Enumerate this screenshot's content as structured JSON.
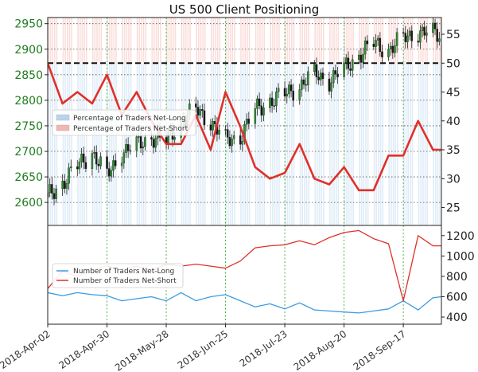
{
  "chart_data": [
    {
      "type": "line",
      "panel": "positioning",
      "title": "US 500 Client Positioning",
      "price_ticks": [
        2600,
        2650,
        2700,
        2750,
        2800,
        2850,
        2900,
        2950
      ],
      "pct_ticks": [
        25,
        30,
        35,
        40,
        45,
        50,
        55
      ],
      "price_ylim": [
        2555,
        2962
      ],
      "pct_ylim": [
        21.9,
        57.9
      ],
      "x_ticks": [
        "2018-Apr-02",
        "2018-Apr-30",
        "2018-May-28",
        "2018-Jun-25",
        "2018-Jul-23",
        "2018-Aug-20",
        "2018-Sep-17"
      ],
      "x_range": [
        "2018-Apr-02",
        "2018-Oct-05"
      ],
      "legend": [
        {
          "label": "Percentage of Traders Net-Long",
          "color": "#b9d4ee"
        },
        {
          "label": "Percentage of Traders Net-Short",
          "color": "#f3b5b0"
        }
      ],
      "reference_line": 50,
      "grid": true,
      "legend_position": "top-left",
      "x": [
        "2018-Apr-02",
        "2018-Apr-09",
        "2018-Apr-16",
        "2018-Apr-23",
        "2018-Apr-30",
        "2018-May-07",
        "2018-May-14",
        "2018-May-21",
        "2018-May-28",
        "2018-Jun-04",
        "2018-Jun-11",
        "2018-Jun-18",
        "2018-Jun-25",
        "2018-Jul-02",
        "2018-Jul-09",
        "2018-Jul-16",
        "2018-Jul-23",
        "2018-Jul-30",
        "2018-Aug-06",
        "2018-Aug-13",
        "2018-Aug-20",
        "2018-Aug-27",
        "2018-Sep-03",
        "2018-Sep-10",
        "2018-Sep-17",
        "2018-Sep-24",
        "2018-Oct-01",
        "2018-Oct-05"
      ],
      "series": [
        {
          "name": "Percentage of Traders Net-Short",
          "color": "#e0302a",
          "values": [
            50,
            43,
            45,
            43,
            48,
            41,
            45,
            40,
            36,
            36,
            41,
            35,
            45,
            39,
            32,
            30,
            31,
            36,
            30,
            29,
            32,
            28,
            28,
            34,
            34,
            40,
            35,
            35
          ]
        },
        {
          "name": "US 500 price",
          "color": "#2b2b2b",
          "values": [
            2610,
            2640,
            2670,
            2700,
            2650,
            2700,
            2710,
            2730,
            2720,
            2760,
            2780,
            2760,
            2720,
            2730,
            2780,
            2800,
            2810,
            2830,
            2850,
            2840,
            2860,
            2890,
            2910,
            2900,
            2920,
            2935,
            2930,
            2925
          ]
        }
      ]
    },
    {
      "type": "line",
      "panel": "counts",
      "y_ticks": [
        400,
        600,
        800,
        1000,
        1200
      ],
      "ylim": [
        330,
        1300
      ],
      "legend": [
        {
          "label": "Number of Traders Net-Long",
          "color": "#3c9be0"
        },
        {
          "label": "Number of Traders Net-Short",
          "color": "#e0302a"
        }
      ],
      "legend_position": "left",
      "x": [
        "2018-Apr-02",
        "2018-Apr-09",
        "2018-Apr-16",
        "2018-Apr-23",
        "2018-Apr-30",
        "2018-May-07",
        "2018-May-14",
        "2018-May-21",
        "2018-May-28",
        "2018-Jun-04",
        "2018-Jun-11",
        "2018-Jun-18",
        "2018-Jun-25",
        "2018-Jul-02",
        "2018-Jul-09",
        "2018-Jul-16",
        "2018-Jul-23",
        "2018-Jul-30",
        "2018-Aug-06",
        "2018-Aug-13",
        "2018-Aug-20",
        "2018-Aug-27",
        "2018-Sep-03",
        "2018-Sep-10",
        "2018-Sep-17",
        "2018-Sep-24",
        "2018-Oct-01",
        "2018-Oct-05"
      ],
      "series": [
        {
          "name": "Number of Traders Net-Long",
          "color": "#3c9be0",
          "values": [
            640,
            610,
            640,
            620,
            610,
            560,
            580,
            600,
            560,
            640,
            560,
            600,
            620,
            560,
            500,
            530,
            480,
            540,
            470,
            460,
            450,
            440,
            460,
            480,
            560,
            470,
            590,
            600
          ]
        },
        {
          "name": "Number of Traders Net-Short",
          "color": "#e0302a",
          "values": [
            680,
            850,
            800,
            860,
            900,
            870,
            900,
            860,
            920,
            900,
            920,
            900,
            880,
            950,
            1080,
            1100,
            1110,
            1150,
            1110,
            1180,
            1230,
            1250,
            1170,
            1120,
            560,
            1200,
            1100,
            1100
          ]
        }
      ]
    }
  ]
}
